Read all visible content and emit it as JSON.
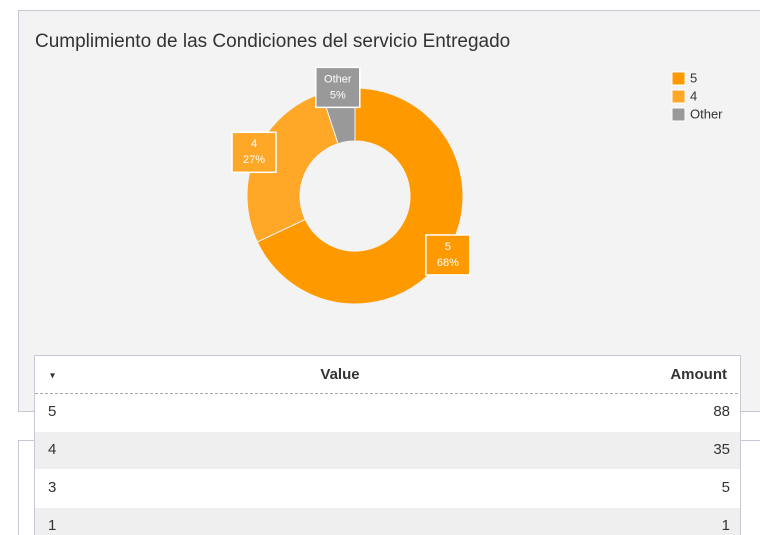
{
  "chart_data": {
    "type": "pie",
    "donut": true,
    "title": "Cumplimiento de las Condiciones del servicio Entregado",
    "categories": [
      "5",
      "4",
      "Other"
    ],
    "values": [
      68,
      27,
      5
    ],
    "value_labels": [
      "68%",
      "27%",
      "5%"
    ],
    "colors": [
      "#ff9900",
      "#ffa726",
      "#999999"
    ],
    "legend": "right"
  },
  "table": {
    "columns": [
      "Value",
      "Amount"
    ],
    "rows": [
      [
        "5",
        88
      ],
      [
        "4",
        35
      ],
      [
        "3",
        5
      ],
      [
        "1",
        1
      ]
    ]
  }
}
